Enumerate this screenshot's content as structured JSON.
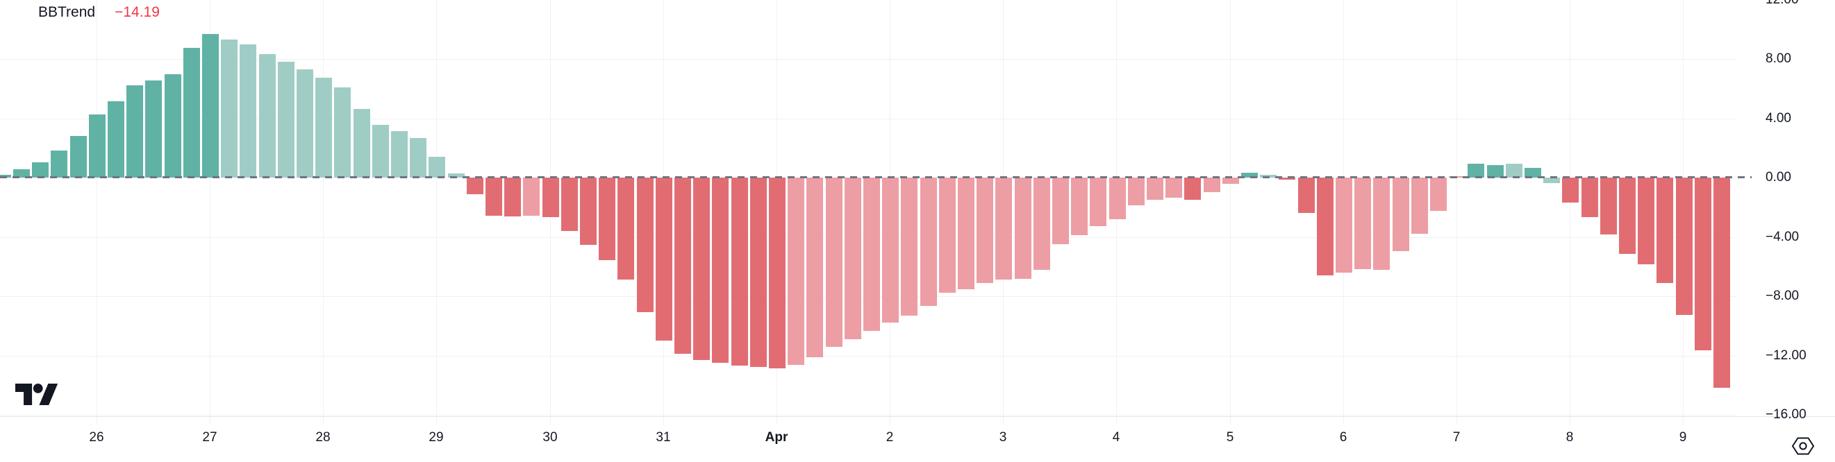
{
  "indicator": {
    "name": "BBTrend",
    "value_label": "−14.19",
    "value_color": "#f23645",
    "title_color": "#131722"
  },
  "colors": {
    "pos_strong": "#60b2a5",
    "pos_weak": "#9fcdc5",
    "neg_strong": "#e16d73",
    "neg_weak": "#ec9ea4",
    "zero_dash": "#70747f",
    "grid": "#f0f1f4",
    "axis_text": "#131722",
    "logo": "#131722"
  },
  "y_axis": {
    "labels": [
      "12.00",
      "8.00",
      "4.00",
      "0.00",
      "−4.00",
      "−8.00",
      "−12.00",
      "−16.00"
    ],
    "values": [
      12,
      8,
      4,
      0,
      -4,
      -8,
      -12,
      -16
    ]
  },
  "x_axis": {
    "labels": [
      {
        "t": "26"
      },
      {
        "t": "27"
      },
      {
        "t": "28"
      },
      {
        "t": "29"
      },
      {
        "t": "30"
      },
      {
        "t": "31"
      },
      {
        "t": "Apr",
        "bold": true
      },
      {
        "t": "2"
      },
      {
        "t": "3"
      },
      {
        "t": "4"
      },
      {
        "t": "5"
      },
      {
        "t": "6"
      },
      {
        "t": "7"
      },
      {
        "t": "8"
      },
      {
        "t": "9"
      }
    ]
  },
  "chart_data": {
    "type": "bar",
    "title": "BBTrend",
    "current_value": -14.19,
    "ylim": [
      -16,
      12
    ],
    "yticks": [
      12,
      8,
      4,
      0,
      -4,
      -8,
      -12,
      -16
    ],
    "x_tick_labels": [
      "26",
      "27",
      "28",
      "29",
      "30",
      "31",
      "Apr",
      "2",
      "3",
      "4",
      "5",
      "6",
      "7",
      "8",
      "9"
    ],
    "bars_per_day": 6,
    "legend_position": "top-left",
    "grid": true,
    "series": [
      {
        "name": "BBTrend",
        "values": [
          0.2,
          0.56,
          1.02,
          1.84,
          2.82,
          4.26,
          5.13,
          6.2,
          6.57,
          6.97,
          8.75,
          9.69,
          9.33,
          8.97,
          8.34,
          7.83,
          7.28,
          6.75,
          6.08,
          4.63,
          3.54,
          3.13,
          2.65,
          1.4,
          0.28,
          -1.12,
          -2.56,
          -2.6,
          -2.56,
          -2.68,
          -3.59,
          -4.55,
          -5.57,
          -6.86,
          -9.08,
          -11.0,
          -11.9,
          -12.32,
          -12.51,
          -12.67,
          -12.79,
          -12.85,
          -12.65,
          -12.1,
          -11.42,
          -10.92,
          -10.33,
          -9.78,
          -9.31,
          -8.66,
          -7.75,
          -7.52,
          -7.13,
          -6.89,
          -6.82,
          -6.24,
          -4.48,
          -3.9,
          -3.27,
          -2.81,
          -1.87,
          -1.48,
          -1.36,
          -1.5,
          -0.96,
          -0.4,
          0.33,
          0.2,
          -0.15,
          -2.4,
          -6.58,
          -6.42,
          -6.19,
          -6.24,
          -4.95,
          -3.78,
          -2.26,
          0.06,
          0.95,
          0.86,
          0.95,
          0.67,
          -0.39,
          -1.67,
          -2.65,
          -3.85,
          -5.15,
          -5.83,
          -7.1,
          -9.27,
          -11.65,
          -14.19
        ],
        "bar_colors": [
          "ps",
          "ps",
          "ps",
          "ps",
          "ps",
          "ps",
          "ps",
          "ps",
          "ps",
          "ps",
          "ps",
          "ps",
          "pw",
          "pw",
          "pw",
          "pw",
          "pw",
          "pw",
          "pw",
          "pw",
          "pw",
          "pw",
          "pw",
          "pw",
          "pw",
          "ns",
          "ns",
          "ns",
          "nw",
          "ns",
          "ns",
          "ns",
          "ns",
          "ns",
          "ns",
          "ns",
          "ns",
          "ns",
          "ns",
          "ns",
          "ns",
          "ns",
          "nw",
          "nw",
          "nw",
          "nw",
          "nw",
          "nw",
          "nw",
          "nw",
          "nw",
          "nw",
          "nw",
          "nw",
          "nw",
          "nw",
          "nw",
          "nw",
          "nw",
          "nw",
          "nw",
          "nw",
          "nw",
          "ns",
          "nw",
          "nw",
          "ps",
          "pw",
          "ns",
          "ns",
          "ns",
          "nw",
          "nw",
          "nw",
          "nw",
          "nw",
          "nw",
          "nw",
          "ps",
          "ps",
          "pw",
          "ps",
          "pw",
          "ns",
          "ns",
          "ns",
          "ns",
          "ns",
          "ns",
          "ns",
          "ns",
          "ns",
          "ns"
        ]
      }
    ]
  }
}
